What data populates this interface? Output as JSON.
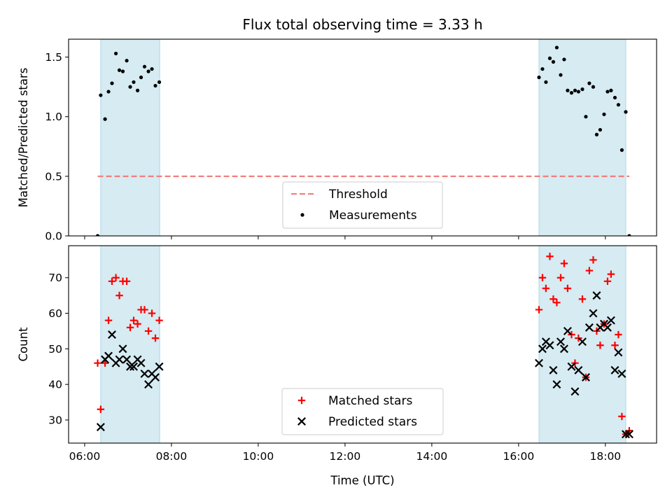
{
  "chart_data": {
    "title": "Flux total observing time = 3.33 h",
    "xlabel": "Time (UTC)",
    "x_ticks": [
      "06:00",
      "08:00",
      "10:00",
      "12:00",
      "14:00",
      "16:00",
      "18:00"
    ],
    "x_tick_hours": [
      6,
      8,
      10,
      12,
      14,
      16,
      18
    ],
    "xlim_hours": [
      5.63,
      19.18
    ],
    "shaded_regions_hours": [
      [
        6.37,
        7.73
      ],
      [
        16.47,
        18.47
      ]
    ],
    "shade_color": "#add8e6",
    "panels": [
      {
        "type": "line+scatter",
        "ylabel": "Matched/Predicted stars",
        "ylim": [
          0,
          1.65
        ],
        "y_ticks": [
          "0.0",
          "0.5",
          "1.0",
          "1.5"
        ],
        "y_tick_values": [
          0,
          0.5,
          1.0,
          1.5
        ],
        "legend": [
          "Threshold",
          "Measurements"
        ],
        "legend_position": "lower center",
        "threshold": {
          "name": "Threshold",
          "value": 0.5,
          "x_range_hours": [
            6.3,
            18.55
          ],
          "color": "#f08080"
        },
        "series": [
          {
            "name": "Measurements",
            "color": "#000000",
            "marker": "dot",
            "x_hours": [
              6.3,
              6.37,
              6.47,
              6.55,
              6.63,
              6.72,
              6.8,
              6.88,
              6.97,
              7.05,
              7.13,
              7.22,
              7.3,
              7.38,
              7.47,
              7.55,
              7.63,
              7.72,
              16.47,
              16.55,
              16.63,
              16.72,
              16.8,
              16.88,
              16.97,
              17.05,
              17.13,
              17.22,
              17.3,
              17.38,
              17.47,
              17.55,
              17.63,
              17.72,
              17.8,
              17.88,
              17.97,
              18.05,
              18.13,
              18.22,
              18.3,
              18.38,
              18.47,
              18.55
            ],
            "values": [
              0.0,
              1.18,
              0.98,
              1.21,
              1.28,
              1.53,
              1.39,
              1.38,
              1.47,
              1.25,
              1.29,
              1.22,
              1.33,
              1.42,
              1.38,
              1.4,
              1.26,
              1.29,
              1.33,
              1.4,
              1.29,
              1.49,
              1.46,
              1.58,
              1.35,
              1.48,
              1.22,
              1.2,
              1.22,
              1.21,
              1.23,
              1.0,
              1.28,
              1.25,
              0.85,
              0.89,
              1.02,
              1.21,
              1.22,
              1.16,
              1.1,
              0.72,
              1.04,
              0.0
            ]
          }
        ]
      },
      {
        "type": "scatter",
        "ylabel": "Count",
        "ylim": [
          23.5,
          79
        ],
        "y_ticks": [
          "30",
          "40",
          "50",
          "60",
          "70"
        ],
        "y_tick_values": [
          30,
          40,
          50,
          60,
          70
        ],
        "legend": [
          "Matched stars",
          "Predicted stars"
        ],
        "legend_position": "lower center",
        "series": [
          {
            "name": "Matched stars",
            "color": "#ff0000",
            "marker": "plus",
            "x_hours": [
              6.3,
              6.37,
              6.47,
              6.55,
              6.63,
              6.72,
              6.8,
              6.88,
              6.97,
              7.05,
              7.13,
              7.22,
              7.3,
              7.38,
              7.47,
              7.55,
              7.63,
              7.72,
              16.47,
              16.55,
              16.63,
              16.72,
              16.8,
              16.88,
              16.97,
              17.05,
              17.13,
              17.22,
              17.3,
              17.38,
              17.47,
              17.55,
              17.63,
              17.72,
              17.8,
              17.88,
              17.97,
              18.05,
              18.13,
              18.22,
              18.3,
              18.38,
              18.47,
              18.55
            ],
            "values": [
              46,
              33,
              46,
              58,
              69,
              70,
              65,
              69,
              69,
              56,
              58,
              57,
              61,
              61,
              55,
              60,
              53,
              58,
              61,
              70,
              67,
              76,
              64,
              63,
              70,
              74,
              67,
              54,
              46,
              53,
              64,
              42,
              72,
              75,
              55,
              51,
              57,
              69,
              71,
              51,
              54,
              31,
              26,
              27
            ]
          },
          {
            "name": "Predicted stars",
            "color": "#000000",
            "marker": "x",
            "x_hours": [
              6.37,
              6.47,
              6.55,
              6.63,
              6.72,
              6.8,
              6.88,
              6.97,
              7.05,
              7.13,
              7.22,
              7.3,
              7.38,
              7.47,
              7.55,
              7.63,
              7.72,
              16.47,
              16.55,
              16.63,
              16.72,
              16.8,
              16.88,
              16.97,
              17.05,
              17.13,
              17.22,
              17.3,
              17.38,
              17.47,
              17.55,
              17.63,
              17.72,
              17.8,
              17.88,
              17.97,
              18.05,
              18.13,
              18.22,
              18.3,
              18.38,
              18.47,
              18.55
            ],
            "values": [
              28,
              47,
              48,
              54,
              46,
              47,
              50,
              47,
              45,
              45,
              47,
              46,
              43,
              40,
              43,
              42,
              45,
              46,
              50,
              52,
              51,
              44,
              40,
              52,
              50,
              55,
              45,
              38,
              44,
              52,
              42,
              56,
              60,
              65,
              56,
              57,
              56,
              58,
              44,
              49,
              43,
              26,
              26
            ]
          }
        ]
      }
    ]
  }
}
